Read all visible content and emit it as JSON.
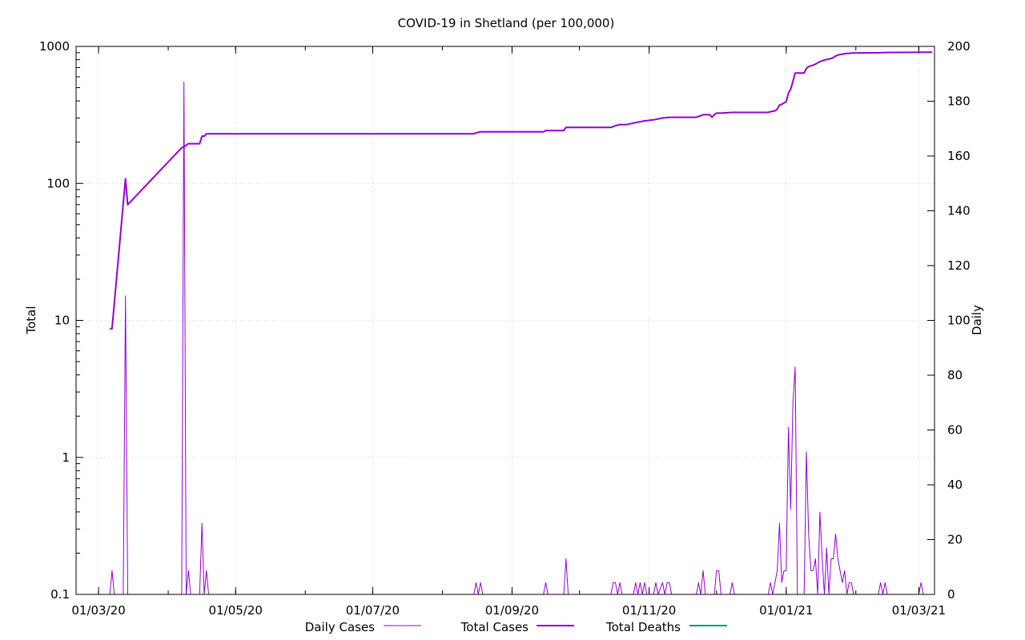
{
  "chart_data": {
    "type": "line",
    "title": "COVID-19 in Shetland (per 100,000)",
    "ylabel_left": "Total",
    "ylabel_right": "Daily",
    "y_left_scale": "log",
    "y_left_range": [
      0.1,
      1000
    ],
    "y_left_ticks": [
      {
        "value": 0.1,
        "label": "0.1"
      },
      {
        "value": 1,
        "label": "1"
      },
      {
        "value": 10,
        "label": "10"
      },
      {
        "value": 100,
        "label": "100"
      },
      {
        "value": 1000,
        "label": "1000"
      }
    ],
    "y_right_range": [
      0,
      200
    ],
    "y_right_ticks": [
      {
        "value": 0,
        "label": "0"
      },
      {
        "value": 20,
        "label": "20"
      },
      {
        "value": 40,
        "label": "40"
      },
      {
        "value": 60,
        "label": "60"
      },
      {
        "value": 80,
        "label": "80"
      },
      {
        "value": 100,
        "label": "100"
      },
      {
        "value": 120,
        "label": "120"
      },
      {
        "value": 140,
        "label": "140"
      },
      {
        "value": 160,
        "label": "160"
      },
      {
        "value": 180,
        "label": "180"
      },
      {
        "value": 200,
        "label": "200"
      }
    ],
    "x_range": [
      "2020-02-20",
      "2021-03-08"
    ],
    "x_ticks": [
      {
        "value": "2020-03-01",
        "label": "01/03/20"
      },
      {
        "value": "2020-05-01",
        "label": "01/05/20"
      },
      {
        "value": "2020-07-01",
        "label": "01/07/20"
      },
      {
        "value": "2020-09-01",
        "label": "01/09/20"
      },
      {
        "value": "2020-11-01",
        "label": "01/11/20"
      },
      {
        "value": "2021-01-01",
        "label": "01/01/21"
      },
      {
        "value": "2021-03-01",
        "label": "01/03/21"
      }
    ],
    "grid": true,
    "legend_position": "bottom",
    "series": [
      {
        "name": "Daily Cases",
        "axis": "right",
        "color": "#9400d3",
        "points": [
          [
            "2020-03-06",
            0
          ],
          [
            "2020-03-07",
            8.7
          ],
          [
            "2020-03-08",
            0
          ],
          [
            "2020-03-12",
            0
          ],
          [
            "2020-03-13",
            109
          ],
          [
            "2020-03-14",
            0
          ],
          [
            "2020-04-07",
            0
          ],
          [
            "2020-04-08",
            187
          ],
          [
            "2020-04-09",
            0
          ],
          [
            "2020-04-10",
            8.7
          ],
          [
            "2020-04-11",
            0
          ],
          [
            "2020-04-15",
            0
          ],
          [
            "2020-04-16",
            26
          ],
          [
            "2020-04-17",
            0
          ],
          [
            "2020-04-18",
            8.7
          ],
          [
            "2020-04-19",
            0
          ],
          [
            "2020-08-15",
            0
          ],
          [
            "2020-08-16",
            4.3
          ],
          [
            "2020-08-17",
            0
          ],
          [
            "2020-08-18",
            4.3
          ],
          [
            "2020-08-19",
            0
          ],
          [
            "2020-09-15",
            0
          ],
          [
            "2020-09-16",
            4.3
          ],
          [
            "2020-09-17",
            0
          ],
          [
            "2020-09-24",
            0
          ],
          [
            "2020-09-25",
            13
          ],
          [
            "2020-09-26",
            0
          ],
          [
            "2020-10-15",
            0
          ],
          [
            "2020-10-16",
            4.3
          ],
          [
            "2020-10-17",
            4.3
          ],
          [
            "2020-10-18",
            0
          ],
          [
            "2020-10-19",
            4.3
          ],
          [
            "2020-10-20",
            0
          ],
          [
            "2020-10-25",
            0
          ],
          [
            "2020-10-26",
            4.3
          ],
          [
            "2020-10-27",
            0
          ],
          [
            "2020-10-28",
            4.3
          ],
          [
            "2020-10-29",
            0
          ],
          [
            "2020-10-30",
            4.3
          ],
          [
            "2020-10-31",
            0
          ],
          [
            "2020-11-03",
            0
          ],
          [
            "2020-11-04",
            4.3
          ],
          [
            "2020-11-05",
            0
          ],
          [
            "2020-11-07",
            4.3
          ],
          [
            "2020-11-08",
            0
          ],
          [
            "2020-11-09",
            4.3
          ],
          [
            "2020-11-10",
            4.3
          ],
          [
            "2020-11-11",
            0
          ],
          [
            "2020-11-22",
            0
          ],
          [
            "2020-11-23",
            4.3
          ],
          [
            "2020-11-24",
            0
          ],
          [
            "2020-11-25",
            8.7
          ],
          [
            "2020-11-26",
            0
          ],
          [
            "2020-11-30",
            0
          ],
          [
            "2020-12-01",
            8.7
          ],
          [
            "2020-12-02",
            8.7
          ],
          [
            "2020-12-03",
            0
          ],
          [
            "2020-12-07",
            0
          ],
          [
            "2020-12-08",
            4.3
          ],
          [
            "2020-12-09",
            0
          ],
          [
            "2020-12-24",
            0
          ],
          [
            "2020-12-25",
            4.3
          ],
          [
            "2020-12-26",
            0
          ],
          [
            "2020-12-27",
            4.3
          ],
          [
            "2020-12-28",
            8.7
          ],
          [
            "2020-12-29",
            26
          ],
          [
            "2020-12-30",
            4.3
          ],
          [
            "2020-12-31",
            8.7
          ],
          [
            "2021-01-01",
            8.7
          ],
          [
            "2021-01-02",
            61
          ],
          [
            "2021-01-03",
            31
          ],
          [
            "2021-01-04",
            70
          ],
          [
            "2021-01-05",
            83
          ],
          [
            "2021-01-06",
            0
          ],
          [
            "2021-01-07",
            0
          ],
          [
            "2021-01-08",
            0
          ],
          [
            "2021-01-09",
            0
          ],
          [
            "2021-01-10",
            52
          ],
          [
            "2021-01-11",
            22
          ],
          [
            "2021-01-12",
            8.7
          ],
          [
            "2021-01-13",
            8.7
          ],
          [
            "2021-01-14",
            13
          ],
          [
            "2021-01-15",
            0
          ],
          [
            "2021-01-16",
            30
          ],
          [
            "2021-01-17",
            13
          ],
          [
            "2021-01-18",
            0
          ],
          [
            "2021-01-19",
            17
          ],
          [
            "2021-01-20",
            0
          ],
          [
            "2021-01-21",
            13
          ],
          [
            "2021-01-22",
            13
          ],
          [
            "2021-01-23",
            22
          ],
          [
            "2021-01-24",
            13
          ],
          [
            "2021-01-25",
            8.7
          ],
          [
            "2021-01-26",
            4.3
          ],
          [
            "2021-01-27",
            8.7
          ],
          [
            "2021-01-28",
            0
          ],
          [
            "2021-01-29",
            4.3
          ],
          [
            "2021-01-30",
            4.3
          ],
          [
            "2021-01-31",
            0
          ],
          [
            "2021-02-11",
            0
          ],
          [
            "2021-02-12",
            4.3
          ],
          [
            "2021-02-13",
            0
          ],
          [
            "2021-02-14",
            4.3
          ],
          [
            "2021-02-15",
            0
          ],
          [
            "2021-03-01",
            0
          ],
          [
            "2021-03-02",
            4.3
          ],
          [
            "2021-03-03",
            0
          ]
        ]
      },
      {
        "name": "Total Cases",
        "axis": "left",
        "color": "#9400d3",
        "points": [
          [
            "2020-03-06",
            8.7
          ],
          [
            "2020-03-07",
            8.7
          ],
          [
            "2020-03-13",
            108
          ],
          [
            "2020-03-14",
            70
          ],
          [
            "2020-04-07",
            182
          ],
          [
            "2020-04-08",
            185
          ],
          [
            "2020-04-10",
            195
          ],
          [
            "2020-04-15",
            195
          ],
          [
            "2020-04-16",
            221
          ],
          [
            "2020-04-17",
            221
          ],
          [
            "2020-04-18",
            230
          ],
          [
            "2020-04-19",
            230
          ],
          [
            "2020-08-15",
            230
          ],
          [
            "2020-08-16",
            234
          ],
          [
            "2020-08-18",
            238
          ],
          [
            "2020-09-15",
            238
          ],
          [
            "2020-09-16",
            243
          ],
          [
            "2020-09-24",
            243
          ],
          [
            "2020-09-25",
            256
          ],
          [
            "2020-10-15",
            256
          ],
          [
            "2020-10-16",
            260
          ],
          [
            "2020-10-17",
            264
          ],
          [
            "2020-10-19",
            269
          ],
          [
            "2020-10-22",
            269
          ],
          [
            "2020-10-26",
            278
          ],
          [
            "2020-10-28",
            282
          ],
          [
            "2020-10-30",
            286
          ],
          [
            "2020-11-03",
            291
          ],
          [
            "2020-11-07",
            300
          ],
          [
            "2020-11-10",
            304
          ],
          [
            "2020-11-22",
            304
          ],
          [
            "2020-11-23",
            308
          ],
          [
            "2020-11-25",
            317
          ],
          [
            "2020-11-28",
            317
          ],
          [
            "2020-11-29",
            304
          ],
          [
            "2020-11-30",
            317
          ],
          [
            "2020-12-01",
            326
          ],
          [
            "2020-12-03",
            326
          ],
          [
            "2020-12-08",
            330
          ],
          [
            "2020-12-24",
            330
          ],
          [
            "2020-12-25",
            334
          ],
          [
            "2020-12-27",
            339
          ],
          [
            "2020-12-28",
            347
          ],
          [
            "2020-12-29",
            373
          ],
          [
            "2020-12-30",
            378
          ],
          [
            "2020-12-31",
            386
          ],
          [
            "2021-01-01",
            395
          ],
          [
            "2021-01-02",
            456
          ],
          [
            "2021-01-03",
            487
          ],
          [
            "2021-01-04",
            556
          ],
          [
            "2021-01-05",
            639
          ],
          [
            "2021-01-09",
            639
          ],
          [
            "2021-01-10",
            691
          ],
          [
            "2021-01-11",
            713
          ],
          [
            "2021-01-12",
            721
          ],
          [
            "2021-01-13",
            730
          ],
          [
            "2021-01-14",
            743
          ],
          [
            "2021-01-16",
            773
          ],
          [
            "2021-01-17",
            786
          ],
          [
            "2021-01-19",
            803
          ],
          [
            "2021-01-21",
            816
          ],
          [
            "2021-01-22",
            829
          ],
          [
            "2021-01-23",
            851
          ],
          [
            "2021-01-24",
            864
          ],
          [
            "2021-01-25",
            873
          ],
          [
            "2021-01-26",
            877
          ],
          [
            "2021-01-27",
            886
          ],
          [
            "2021-01-29",
            890
          ],
          [
            "2021-01-30",
            894
          ],
          [
            "2021-02-12",
            899
          ],
          [
            "2021-02-14",
            903
          ],
          [
            "2021-03-02",
            907
          ],
          [
            "2021-03-07",
            907
          ]
        ]
      },
      {
        "name": "Total Deaths",
        "axis": "left",
        "color": "#009e73",
        "points": []
      }
    ]
  }
}
